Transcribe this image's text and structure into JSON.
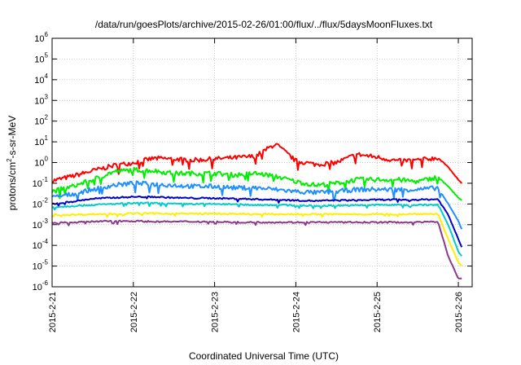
{
  "chart_data": {
    "type": "line",
    "title": "/data/run/goesPlots/archive/2015-02-26/01:00/flux/../flux/5daysMoonFluxes.txt",
    "xlabel": "Coordinated Universal Time (UTC)",
    "ylabel": {
      "prefix": "protons/cm",
      "sup": "2",
      "suffix": "-s-sr-MeV"
    },
    "y_scale": "log",
    "ylim": [
      1e-06,
      1000000.0
    ],
    "y_tick_exponents": [
      -6,
      -5,
      -4,
      -3,
      -2,
      -1,
      0,
      1,
      2,
      3,
      4,
      5,
      6
    ],
    "y_tick_base": "10",
    "xlim": [
      "2015-02-21",
      "2015-02-26"
    ],
    "x_tick_labels": [
      "2015-2-21",
      "2015-2-22",
      "2015-2-23",
      "2015-2-24",
      "2015-2-25",
      "2015-2-26"
    ],
    "x_days": [
      "2015-02-21",
      "2015-02-22",
      "2015-02-23",
      "2015-02-24",
      "2015-02-25",
      "2015-02-26"
    ],
    "grid": true,
    "legend": false,
    "series": [
      {
        "color": "#ff0000",
        "x": [
          "2015-02-21T00:00",
          "2015-02-21T06:00",
          "2015-02-21T12:00",
          "2015-02-21T18:00",
          "2015-02-22T00:00",
          "2015-02-22T06:00",
          "2015-02-22T12:00",
          "2015-02-22T18:00",
          "2015-02-23T00:00",
          "2015-02-23T06:00",
          "2015-02-23T12:00",
          "2015-02-23T18:00",
          "2015-02-24T00:00",
          "2015-02-24T06:00",
          "2015-02-24T12:00",
          "2015-02-24T18:00",
          "2015-02-25T00:00",
          "2015-02-25T06:00",
          "2015-02-25T12:00",
          "2015-02-25T18:00",
          "2015-02-25T21:00",
          "2015-02-26T00:00",
          "2015-02-26T01:00"
        ],
        "y": [
          0.13,
          0.22,
          0.4,
          0.7,
          1.0,
          1.6,
          1.5,
          1.3,
          1.5,
          1.7,
          2.0,
          8.0,
          1.2,
          0.8,
          1.0,
          2.5,
          1.8,
          1.2,
          1.3,
          1.7,
          0.6,
          0.15,
          0.1
        ]
      },
      {
        "color": "#00ee00",
        "x": [
          "2015-02-21T00:00",
          "2015-02-21T06:00",
          "2015-02-21T12:00",
          "2015-02-21T18:00",
          "2015-02-22T00:00",
          "2015-02-22T06:00",
          "2015-02-22T12:00",
          "2015-02-22T18:00",
          "2015-02-23T00:00",
          "2015-02-23T06:00",
          "2015-02-23T12:00",
          "2015-02-23T18:00",
          "2015-02-24T00:00",
          "2015-02-24T06:00",
          "2015-02-24T12:00",
          "2015-02-24T18:00",
          "2015-02-25T00:00",
          "2015-02-25T06:00",
          "2015-02-25T12:00",
          "2015-02-25T18:00",
          "2015-02-25T21:00",
          "2015-02-26T00:00",
          "2015-02-26T01:00"
        ],
        "y": [
          0.04,
          0.07,
          0.15,
          0.35,
          0.45,
          0.4,
          0.3,
          0.3,
          0.3,
          0.25,
          0.3,
          0.22,
          0.12,
          0.08,
          0.1,
          0.15,
          0.15,
          0.15,
          0.12,
          0.2,
          0.07,
          0.02,
          0.015
        ]
      },
      {
        "color": "#1e90ff",
        "x": [
          "2015-02-21T00:00",
          "2015-02-21T06:00",
          "2015-02-21T12:00",
          "2015-02-21T18:00",
          "2015-02-22T00:00",
          "2015-02-22T06:00",
          "2015-02-22T12:00",
          "2015-02-22T18:00",
          "2015-02-23T00:00",
          "2015-02-23T06:00",
          "2015-02-23T12:00",
          "2015-02-23T18:00",
          "2015-02-24T00:00",
          "2015-02-24T06:00",
          "2015-02-24T12:00",
          "2015-02-24T18:00",
          "2015-02-25T00:00",
          "2015-02-25T06:00",
          "2015-02-25T12:00",
          "2015-02-25T18:00",
          "2015-02-25T21:00",
          "2015-02-26T00:00",
          "2015-02-26T01:00"
        ],
        "y": [
          0.02,
          0.03,
          0.05,
          0.08,
          0.1,
          0.09,
          0.08,
          0.07,
          0.07,
          0.06,
          0.06,
          0.05,
          0.04,
          0.035,
          0.04,
          0.05,
          0.05,
          0.05,
          0.05,
          0.06,
          0.01,
          0.0015,
          0.0006
        ]
      },
      {
        "color": "#0000cc",
        "x": [
          "2015-02-21T00:00",
          "2015-02-21T06:00",
          "2015-02-21T12:00",
          "2015-02-21T18:00",
          "2015-02-22T00:00",
          "2015-02-22T06:00",
          "2015-02-22T12:00",
          "2015-02-22T18:00",
          "2015-02-23T00:00",
          "2015-02-23T06:00",
          "2015-02-23T12:00",
          "2015-02-23T18:00",
          "2015-02-24T00:00",
          "2015-02-24T06:00",
          "2015-02-24T12:00",
          "2015-02-24T18:00",
          "2015-02-25T00:00",
          "2015-02-25T06:00",
          "2015-02-25T12:00",
          "2015-02-25T18:00",
          "2015-02-25T21:00",
          "2015-02-26T00:00",
          "2015-02-26T01:00"
        ],
        "y": [
          0.01,
          0.013,
          0.018,
          0.02,
          0.022,
          0.022,
          0.02,
          0.019,
          0.019,
          0.018,
          0.017,
          0.016,
          0.015,
          0.014,
          0.015,
          0.015,
          0.016,
          0.016,
          0.016,
          0.017,
          0.003,
          0.0002,
          8e-05
        ]
      },
      {
        "color": "#00cccc",
        "x": [
          "2015-02-21T00:00",
          "2015-02-21T06:00",
          "2015-02-21T12:00",
          "2015-02-21T18:00",
          "2015-02-22T00:00",
          "2015-02-22T06:00",
          "2015-02-22T12:00",
          "2015-02-22T18:00",
          "2015-02-23T00:00",
          "2015-02-23T06:00",
          "2015-02-23T12:00",
          "2015-02-23T18:00",
          "2015-02-24T00:00",
          "2015-02-24T06:00",
          "2015-02-24T12:00",
          "2015-02-24T18:00",
          "2015-02-25T00:00",
          "2015-02-25T06:00",
          "2015-02-25T12:00",
          "2015-02-25T18:00",
          "2015-02-25T21:00",
          "2015-02-26T00:00",
          "2015-02-26T01:00"
        ],
        "y": [
          0.007,
          0.008,
          0.009,
          0.01,
          0.011,
          0.011,
          0.01,
          0.01,
          0.01,
          0.0095,
          0.009,
          0.009,
          0.0085,
          0.008,
          0.0085,
          0.0085,
          0.009,
          0.009,
          0.009,
          0.009,
          0.001,
          5e-05,
          3e-05
        ]
      },
      {
        "color": "#ffee00",
        "x": [
          "2015-02-21T00:00",
          "2015-02-21T06:00",
          "2015-02-21T12:00",
          "2015-02-21T18:00",
          "2015-02-22T00:00",
          "2015-02-22T06:00",
          "2015-02-22T12:00",
          "2015-02-22T18:00",
          "2015-02-23T00:00",
          "2015-02-23T06:00",
          "2015-02-23T12:00",
          "2015-02-23T18:00",
          "2015-02-24T00:00",
          "2015-02-24T06:00",
          "2015-02-24T12:00",
          "2015-02-24T18:00",
          "2015-02-25T00:00",
          "2015-02-25T06:00",
          "2015-02-25T12:00",
          "2015-02-25T18:00",
          "2015-02-25T21:00",
          "2015-02-26T00:00",
          "2015-02-26T01:00"
        ],
        "y": [
          0.003,
          0.003,
          0.0032,
          0.0033,
          0.0035,
          0.0035,
          0.0034,
          0.0034,
          0.0034,
          0.0033,
          0.0032,
          0.0032,
          0.0032,
          0.0032,
          0.0032,
          0.0032,
          0.0032,
          0.0032,
          0.0033,
          0.0033,
          0.0002,
          1.5e-05,
          1e-05
        ]
      },
      {
        "color": "#8b3a8b",
        "x": [
          "2015-02-21T00:00",
          "2015-02-21T06:00",
          "2015-02-21T12:00",
          "2015-02-21T18:00",
          "2015-02-22T00:00",
          "2015-02-22T06:00",
          "2015-02-22T12:00",
          "2015-02-22T18:00",
          "2015-02-23T00:00",
          "2015-02-23T06:00",
          "2015-02-23T12:00",
          "2015-02-23T18:00",
          "2015-02-24T00:00",
          "2015-02-24T06:00",
          "2015-02-24T12:00",
          "2015-02-24T18:00",
          "2015-02-25T00:00",
          "2015-02-25T06:00",
          "2015-02-25T12:00",
          "2015-02-25T18:00",
          "2015-02-25T21:00",
          "2015-02-26T00:00",
          "2015-02-26T01:00"
        ],
        "y": [
          0.0012,
          0.0013,
          0.0014,
          0.0015,
          0.0015,
          0.0014,
          0.0014,
          0.0014,
          0.0014,
          0.0013,
          0.0013,
          0.0013,
          0.0013,
          0.0013,
          0.0013,
          0.0013,
          0.0013,
          0.0013,
          0.0013,
          0.0014,
          3e-05,
          2.5e-06,
          2.5e-06
        ]
      }
    ]
  }
}
